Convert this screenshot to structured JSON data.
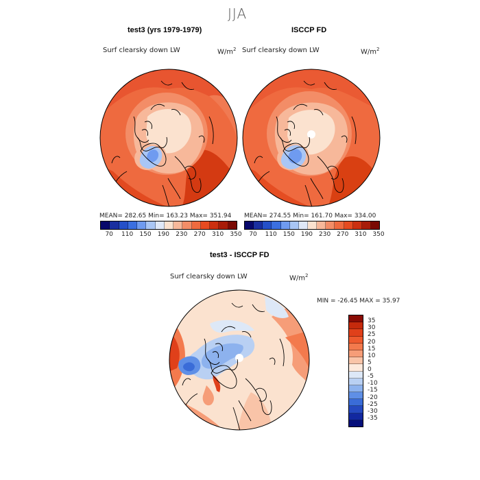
{
  "season": "JJA",
  "panels": [
    {
      "title": "test3 (yrs 1979-1979)",
      "variable": "Surf clearsky down LW",
      "units": "W/m",
      "units_sup": "2",
      "stats": "MEAN= 282.65   Min= 163.23   Max= 351.94"
    },
    {
      "title": "ISCCP FD",
      "variable": "Surf clearsky down LW",
      "units": "W/m",
      "units_sup": "2",
      "stats": "MEAN= 274.55   Min= 161.70   Max= 334.00"
    }
  ],
  "colorbar_top": {
    "ticks": [
      "70",
      "110",
      "150",
      "190",
      "230",
      "270",
      "310",
      "350"
    ],
    "colors": [
      "#08086b",
      "#1a2fa0",
      "#2550c8",
      "#3b6fe0",
      "#6f9bf0",
      "#a9c6f5",
      "#dfe8f8",
      "#fbe2cf",
      "#f7b89a",
      "#f38d67",
      "#ef6a3f",
      "#e64b20",
      "#cc3010",
      "#a81c08",
      "#7a0a04"
    ]
  },
  "diff": {
    "title": "test3 - ISCCP FD",
    "variable": "Surf clearsky down LW",
    "units": "W/m",
    "units_sup": "2",
    "stats": "MIN = -26.45  MAX =  35.97"
  },
  "colorbar_diff": {
    "ticks": [
      "35",
      "30",
      "25",
      "20",
      "15",
      "10",
      "5",
      "0",
      "-5",
      "-10",
      "-15",
      "-20",
      "-25",
      "-30",
      "-35"
    ],
    "colors": [
      "#8a0c05",
      "#c52a0c",
      "#e0401a",
      "#ee5a2e",
      "#f37a4d",
      "#f69d78",
      "#f9c4a8",
      "#fde9dc",
      "#dde8f7",
      "#b9d0f3",
      "#8db2ee",
      "#5f8fe6",
      "#3a6cd8",
      "#2549c0",
      "#1228a0",
      "#050f7a"
    ]
  }
}
